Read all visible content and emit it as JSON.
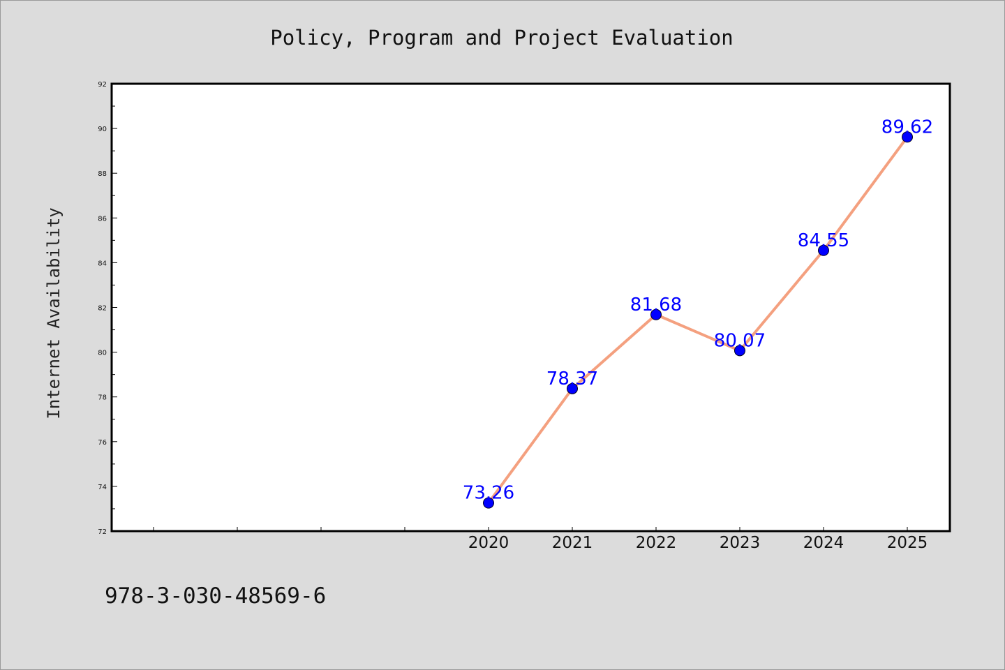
{
  "chart_data": {
    "type": "line",
    "title": "Policy, Program and Project Evaluation",
    "xlabel": "",
    "ylabel": "Internet Availability",
    "x": [
      "2020",
      "2021",
      "2022",
      "2023",
      "2024",
      "2025"
    ],
    "series": [
      {
        "values": [
          73.26,
          78.37,
          81.68,
          80.07,
          84.55,
          89.62
        ]
      }
    ],
    "data_labels": [
      "73.26",
      "78.37",
      "81.68",
      "80.07",
      "84.55",
      "89.62"
    ],
    "ylim": [
      72,
      92
    ],
    "yticks": [
      "72",
      "74",
      "76",
      "78",
      "80",
      "82",
      "84",
      "86",
      "88",
      "90",
      "92"
    ],
    "x_slots_before_data": 4,
    "grid": false,
    "legend": "none",
    "colors": {
      "line": "#f4a07f",
      "marker": "#0000ff",
      "data_label": "#0000ff",
      "background": "#dcdcdc",
      "plot_background": "#ffffff"
    }
  },
  "footer": {
    "isbn": "978-3-030-48569-6"
  }
}
